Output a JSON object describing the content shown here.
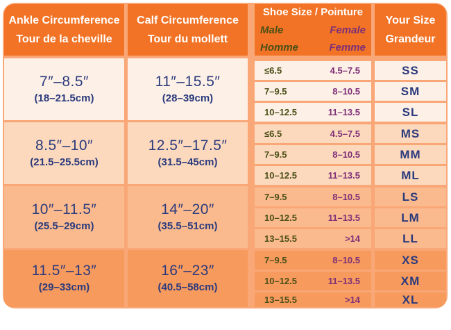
{
  "headers": {
    "ankle": [
      "Ankle Circumference",
      "Tour de la cheville"
    ],
    "calf": [
      "Calf Circumference",
      "Tour du mollett"
    ],
    "shoe_title": "Shoe Size / Pointure",
    "shoe_male": [
      "Male",
      "Homme"
    ],
    "shoe_female": [
      "Female",
      "Femme"
    ],
    "size": [
      "Your Size",
      "Grandeur"
    ]
  },
  "groups": [
    {
      "ankle_in": "7″–8.5″",
      "ankle_cm": "(18–21.5cm)",
      "calf_in": "11″–15.5″",
      "calf_cm": "(28–39cm)",
      "rows": [
        {
          "male": "≤6.5",
          "female": "4.5–7.5",
          "size": "SS"
        },
        {
          "male": "7–9.5",
          "female": "8–10.5",
          "size": "SM"
        },
        {
          "male": "10–12.5",
          "female": "11–13.5",
          "size": "SL"
        }
      ]
    },
    {
      "ankle_in": "8.5″–10″",
      "ankle_cm": "(21.5–25.5cm)",
      "calf_in": "12.5″–17.5″",
      "calf_cm": "(31.5–45cm)",
      "rows": [
        {
          "male": "≤6.5",
          "female": "4.5–7.5",
          "size": "MS"
        },
        {
          "male": "7–9.5",
          "female": "8–10.5",
          "size": "MM"
        },
        {
          "male": "10–12.5",
          "female": "11–13.5",
          "size": "ML"
        }
      ]
    },
    {
      "ankle_in": "10″–11.5″",
      "ankle_cm": "(25.5–29cm)",
      "calf_in": "14″–20″",
      "calf_cm": "(35.5–51cm)",
      "rows": [
        {
          "male": "7–9.5",
          "female": "8–10.5",
          "size": "LS"
        },
        {
          "male": "10–12.5",
          "female": "11–13.5",
          "size": "LM"
        },
        {
          "male": "13–15.5",
          "female": ">14",
          "size": "LL"
        }
      ]
    },
    {
      "ankle_in": "11.5″–13″",
      "ankle_cm": "(29–33cm)",
      "calf_in": "16″–23″",
      "calf_cm": "(40.5–58cm)",
      "rows": [
        {
          "male": "7–9.5",
          "female": "8–10.5",
          "size": "XS"
        },
        {
          "male": "10–12.5",
          "female": "11–13.5",
          "size": "XM"
        },
        {
          "male": "13–15.5",
          "female": ">14",
          "size": "XL"
        }
      ]
    }
  ],
  "colors": {
    "header_bg": "#f27325",
    "male_text": "#4a4f16",
    "female_text": "#7d2f77",
    "size_text": "#2a3a7c"
  }
}
